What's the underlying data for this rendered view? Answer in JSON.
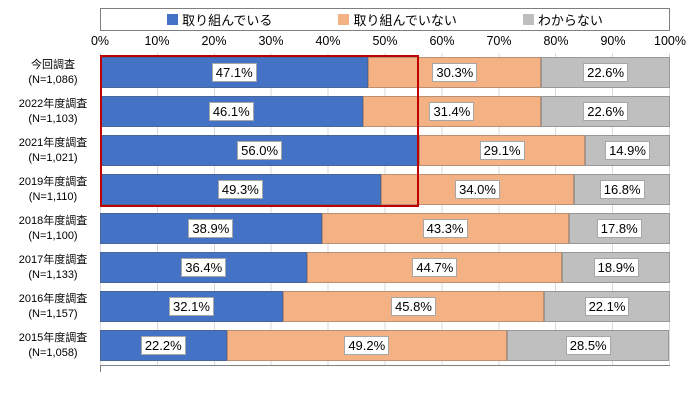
{
  "legend": {
    "items": [
      {
        "key": "yes",
        "label": "取り組んでいる",
        "color": "#4472C4"
      },
      {
        "key": "no",
        "label": "取り組んでいない",
        "color": "#F4B183"
      },
      {
        "key": "unknown",
        "label": "わからない",
        "color": "#BFBFBF"
      }
    ]
  },
  "chart_data": {
    "type": "bar",
    "variant": "horizontal-stacked",
    "title": "",
    "xlabel": "",
    "ylabel": "",
    "xlim": [
      0,
      100
    ],
    "x_ticks": [
      "0%",
      "10%",
      "20%",
      "30%",
      "40%",
      "50%",
      "60%",
      "70%",
      "80%",
      "90%",
      "100%"
    ],
    "grid": true,
    "legend_position": "top",
    "categories": [
      {
        "label": "今回調査",
        "n": "(N=1,086)"
      },
      {
        "label": "2022年度調査",
        "n": "(N=1,103)"
      },
      {
        "label": "2021年度調査",
        "n": "(N=1,021)"
      },
      {
        "label": "2019年度調査",
        "n": "(N=1,110)"
      },
      {
        "label": "2018年度調査",
        "n": "(N=1,100)"
      },
      {
        "label": "2017年度調査",
        "n": "(N=1,133)"
      },
      {
        "label": "2016年度調査",
        "n": "(N=1,157)"
      },
      {
        "label": "2015年度調査",
        "n": "(N=1,058)"
      }
    ],
    "series": [
      {
        "key": "yes",
        "name": "取り組んでいる",
        "color": "#4472C4",
        "values": [
          47.1,
          46.1,
          56.0,
          49.3,
          38.9,
          36.4,
          32.1,
          22.2
        ]
      },
      {
        "key": "no",
        "name": "取り組んでいない",
        "color": "#F4B183",
        "values": [
          30.3,
          31.4,
          29.1,
          34.0,
          43.3,
          44.7,
          45.8,
          49.2
        ]
      },
      {
        "key": "unknown",
        "name": "わからない",
        "color": "#BFBFBF",
        "values": [
          22.6,
          22.6,
          14.9,
          16.8,
          17.8,
          18.9,
          22.1,
          28.5
        ]
      }
    ],
    "highlight": {
      "type": "red-box",
      "row_start": 0,
      "row_end": 3,
      "x_start": 0,
      "x_end": 56,
      "color": "#C00000"
    }
  }
}
